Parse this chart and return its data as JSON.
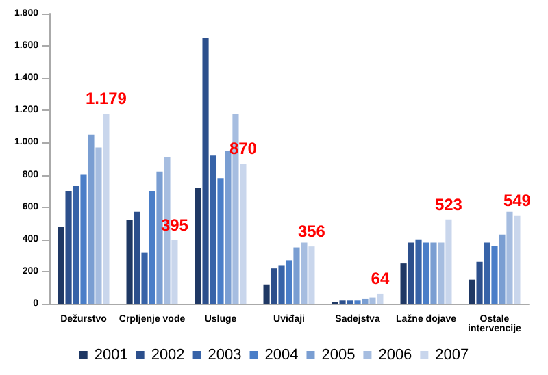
{
  "chart_data": {
    "type": "bar",
    "categories": [
      "Dežurstvo",
      "Crpljenje vode",
      "Usluge",
      "Uviđaji",
      "Sadejstva",
      "Lažne dojave",
      "Ostale intervencije"
    ],
    "series": [
      {
        "name": "2001",
        "color": "#1f3864",
        "values": [
          480,
          520,
          720,
          120,
          10,
          250,
          150
        ]
      },
      {
        "name": "2002",
        "color": "#2c4f8c",
        "values": [
          700,
          570,
          1650,
          220,
          20,
          380,
          260
        ]
      },
      {
        "name": "2003",
        "color": "#3763a8",
        "values": [
          730,
          320,
          920,
          240,
          20,
          400,
          380
        ]
      },
      {
        "name": "2004",
        "color": "#4a7ec8",
        "values": [
          800,
          700,
          780,
          270,
          20,
          380,
          360
        ]
      },
      {
        "name": "2005",
        "color": "#7a9ed2",
        "values": [
          1050,
          820,
          950,
          350,
          30,
          380,
          430
        ]
      },
      {
        "name": "2006",
        "color": "#a6bde0",
        "values": [
          970,
          910,
          1180,
          380,
          40,
          380,
          570
        ]
      },
      {
        "name": "2007",
        "color": "#c9d6ec",
        "values": [
          1179,
          395,
          870,
          356,
          64,
          523,
          549
        ],
        "value_labels": [
          "1.179",
          "395",
          "870",
          "356",
          "64",
          "523",
          "549"
        ]
      }
    ],
    "ylim": [
      0,
      1800
    ],
    "yticks": [
      0,
      200,
      400,
      600,
      800,
      {
        "value": 1000,
        "label": "1.000"
      },
      {
        "value": 1200,
        "label": "1.200"
      },
      {
        "value": 1400,
        "label": "1.400"
      },
      {
        "value": 1600,
        "label": "1.600"
      },
      {
        "value": 1800,
        "label": "1.800"
      }
    ],
    "grid": false,
    "legend": "bottom"
  }
}
